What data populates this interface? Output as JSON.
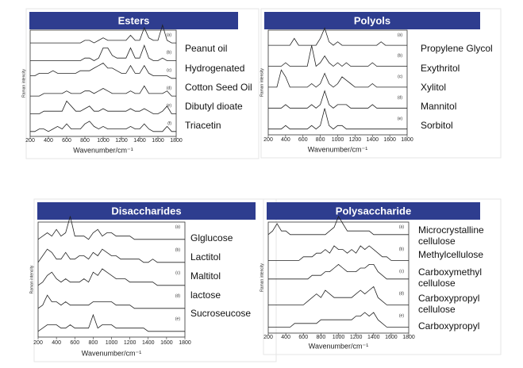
{
  "chart_data": [
    {
      "type": "line",
      "title": "Esters",
      "xlabel": "Wavenumber/cm⁻¹",
      "ylabel": "Raman intencity",
      "xlim": [
        200,
        1800
      ],
      "xticks": [
        200,
        400,
        600,
        800,
        1000,
        1200,
        1400,
        1600,
        1800
      ],
      "x": [
        200,
        250,
        300,
        350,
        400,
        450,
        500,
        550,
        600,
        650,
        700,
        750,
        800,
        850,
        900,
        950,
        1000,
        1050,
        1100,
        1150,
        1200,
        1250,
        1300,
        1350,
        1400,
        1450,
        1500,
        1550,
        1600,
        1650,
        1700,
        1750,
        1800
      ],
      "series": [
        {
          "name": "Peanut oil",
          "tag": "(a)",
          "color": "#222",
          "values": [
            1,
            1,
            1,
            1,
            1,
            1,
            1,
            1,
            1,
            1,
            1,
            1,
            2,
            2,
            1,
            2,
            3,
            2,
            2,
            2,
            2,
            2,
            4,
            2,
            2,
            7,
            3,
            2,
            2,
            8,
            2,
            1,
            1
          ]
        },
        {
          "name": "Hydrogenated",
          "tag": "(b)",
          "color": "#222",
          "values": [
            1,
            1,
            1,
            1,
            1,
            1,
            1,
            1,
            1,
            1,
            1,
            1,
            2,
            2,
            1,
            2,
            6,
            6,
            3,
            2,
            2,
            2,
            6,
            2,
            2,
            7,
            2,
            1,
            1,
            2,
            1,
            1,
            1
          ]
        },
        {
          "name": "Cotton Seed Oil",
          "tag": "(c)",
          "color": "#222",
          "values": [
            2,
            2,
            3,
            3,
            3,
            4,
            3,
            3,
            3,
            3,
            3,
            4,
            4,
            4,
            5,
            6,
            7,
            5,
            5,
            4,
            3,
            3,
            6,
            3,
            3,
            6,
            3,
            2,
            2,
            2,
            2,
            1,
            1
          ]
        },
        {
          "name": "Dibutyl dioate",
          "tag": "(d)",
          "color": "#222",
          "values": [
            1,
            1,
            1,
            2,
            2,
            2,
            2,
            2,
            3,
            2,
            2,
            2,
            3,
            3,
            2,
            3,
            4,
            3,
            2,
            2,
            2,
            2,
            3,
            2,
            2,
            5,
            2,
            2,
            2,
            2,
            3,
            1,
            1
          ]
        },
        {
          "tag": "(e)",
          "color": "#222",
          "values": [
            1,
            1,
            1,
            2,
            2,
            2,
            2,
            2,
            6,
            4,
            2,
            2,
            3,
            4,
            2,
            2,
            3,
            2,
            2,
            2,
            2,
            2,
            3,
            2,
            2,
            3,
            2,
            1,
            1,
            2,
            4,
            1,
            1
          ]
        },
        {
          "name": "Triacetin",
          "tag": "(f)",
          "color": "#222",
          "values": [
            1,
            1,
            2,
            2,
            1,
            2,
            3,
            2,
            4,
            2,
            2,
            2,
            4,
            5,
            3,
            2,
            3,
            2,
            2,
            2,
            2,
            2,
            3,
            2,
            2,
            4,
            2,
            1,
            1,
            1,
            3,
            1,
            1
          ]
        }
      ]
    },
    {
      "type": "line",
      "title": "Polyols",
      "xlabel": "Wavenumber/cm⁻¹",
      "ylabel": "Raman intensity",
      "xlim": [
        200,
        1800
      ],
      "xticks": [
        200,
        400,
        600,
        800,
        1000,
        1200,
        1400,
        1600,
        1800
      ],
      "x": [
        200,
        250,
        300,
        350,
        400,
        450,
        500,
        550,
        600,
        650,
        700,
        750,
        800,
        850,
        900,
        950,
        1000,
        1050,
        1100,
        1150,
        1200,
        1250,
        1300,
        1350,
        1400,
        1450,
        1500,
        1550,
        1600,
        1650,
        1700,
        1750,
        1800
      ],
      "series": [
        {
          "name": "Propylene Glycol",
          "tag": "(a)",
          "color": "#222",
          "values": [
            1,
            1,
            1,
            1,
            1,
            1,
            3,
            1,
            1,
            1,
            1,
            1,
            3,
            6,
            2,
            1,
            2,
            1,
            1,
            1,
            1,
            1,
            1,
            1,
            1,
            1,
            2,
            1,
            1,
            1,
            1,
            1,
            1
          ]
        },
        {
          "name": "Exythritol",
          "tag": "(b)",
          "color": "#222",
          "values": [
            1,
            1,
            1,
            1,
            2,
            1,
            1,
            1,
            1,
            1,
            7,
            1,
            2,
            4,
            2,
            1,
            2,
            1,
            2,
            1,
            1,
            1,
            1,
            1,
            2,
            1,
            1,
            1,
            1,
            1,
            1,
            1,
            1
          ]
        },
        {
          "name": "Xylitol",
          "tag": "(c)",
          "color": "#222",
          "values": [
            1,
            1,
            1,
            6,
            4,
            1,
            1,
            1,
            1,
            1,
            2,
            1,
            2,
            5,
            2,
            1,
            2,
            4,
            3,
            2,
            1,
            1,
            1,
            1,
            2,
            1,
            1,
            1,
            1,
            1,
            1,
            1,
            1
          ]
        },
        {
          "name": "Mannitol",
          "tag": "(d)",
          "color": "#222",
          "values": [
            1,
            1,
            1,
            1,
            2,
            1,
            1,
            1,
            1,
            1,
            2,
            1,
            2,
            6,
            2,
            1,
            2,
            2,
            2,
            1,
            1,
            1,
            1,
            1,
            2,
            1,
            1,
            1,
            1,
            1,
            1,
            1,
            1
          ]
        },
        {
          "name": "Sorbitol",
          "tag": "(e)",
          "color": "#222",
          "values": [
            1,
            1,
            1,
            1,
            2,
            1,
            1,
            1,
            1,
            1,
            2,
            1,
            2,
            7,
            2,
            1,
            2,
            2,
            1,
            1,
            1,
            1,
            1,
            1,
            1,
            1,
            1,
            1,
            1,
            1,
            1,
            1,
            1
          ]
        }
      ]
    },
    {
      "type": "line",
      "title": "Disaccharides",
      "xlabel": "Wavenumber/cm⁻¹",
      "ylabel": "Raman intencity",
      "xlim": [
        200,
        1800
      ],
      "xticks": [
        200,
        400,
        600,
        800,
        1000,
        1200,
        1400,
        1600,
        1800
      ],
      "x": [
        200,
        250,
        300,
        350,
        400,
        450,
        500,
        550,
        600,
        650,
        700,
        750,
        800,
        850,
        900,
        950,
        1000,
        1050,
        1100,
        1150,
        1200,
        1250,
        1300,
        1350,
        1400,
        1450,
        1500,
        1550,
        1600,
        1650,
        1700,
        1750,
        1800
      ],
      "series": [
        {
          "name": "Glglucose",
          "tag": "(a)",
          "color": "#222",
          "values": [
            1,
            2,
            3,
            2,
            4,
            2,
            3,
            8,
            2,
            2,
            2,
            1,
            3,
            4,
            2,
            3,
            3,
            2,
            2,
            2,
            2,
            1,
            1,
            1,
            1,
            1,
            1,
            1,
            1,
            1,
            1,
            1,
            1
          ]
        },
        {
          "name": "Lactitol",
          "tag": "(b)",
          "color": "#222",
          "values": [
            1,
            3,
            5,
            4,
            2,
            2,
            4,
            2,
            2,
            3,
            3,
            2,
            4,
            3,
            5,
            4,
            3,
            3,
            2,
            2,
            2,
            2,
            2,
            1,
            1,
            2,
            1,
            1,
            1,
            1,
            1,
            1,
            1
          ]
        },
        {
          "name": "Maltitol",
          "tag": "(c)",
          "color": "#222",
          "values": [
            1,
            2,
            4,
            5,
            3,
            2,
            3,
            2,
            2,
            2,
            3,
            2,
            5,
            4,
            6,
            5,
            4,
            3,
            3,
            3,
            2,
            2,
            2,
            2,
            2,
            2,
            1,
            1,
            1,
            1,
            1,
            1,
            1
          ]
        },
        {
          "name": "lactose",
          "tag": "(d)",
          "color": "#222",
          "values": [
            1,
            2,
            5,
            3,
            3,
            2,
            3,
            2,
            2,
            2,
            2,
            2,
            3,
            3,
            3,
            3,
            3,
            2,
            2,
            2,
            2,
            1,
            1,
            1,
            1,
            1,
            1,
            1,
            1,
            1,
            1,
            1,
            1
          ]
        },
        {
          "name": "Sucroseucose",
          "tag": "(e)",
          "color": "#222",
          "values": [
            1,
            2,
            3,
            3,
            3,
            2,
            2,
            3,
            2,
            2,
            2,
            2,
            6,
            2,
            3,
            3,
            3,
            2,
            2,
            2,
            2,
            2,
            2,
            2,
            1,
            1,
            1,
            1,
            1,
            1,
            1,
            1,
            1
          ]
        }
      ]
    },
    {
      "type": "line",
      "title": "Polysaccharide",
      "xlabel": "Wavenumber/cm⁻¹",
      "ylabel": "Raman intencity",
      "xlim": [
        200,
        1800
      ],
      "xticks": [
        200,
        400,
        600,
        800,
        1000,
        1200,
        1400,
        1600,
        1800
      ],
      "x": [
        200,
        250,
        300,
        350,
        400,
        450,
        500,
        550,
        600,
        650,
        700,
        750,
        800,
        850,
        900,
        950,
        1000,
        1050,
        1100,
        1150,
        1200,
        1250,
        1300,
        1350,
        1400,
        1450,
        1500,
        1550,
        1600,
        1650,
        1700,
        1750,
        1800
      ],
      "series": [
        {
          "name": "Microcrystalline cellulose",
          "tag": "(a)",
          "color": "#222",
          "values": [
            2,
            3,
            5,
            3,
            3,
            2,
            2,
            2,
            2,
            2,
            2,
            2,
            2,
            2,
            3,
            4,
            7,
            5,
            3,
            3,
            3,
            3,
            3,
            3,
            2,
            2,
            2,
            2,
            2,
            2,
            2,
            2,
            2
          ]
        },
        {
          "name": "Methylcellulose",
          "tag": "(b)",
          "color": "#222",
          "values": [
            1,
            1,
            1,
            1,
            1,
            1,
            1,
            1,
            2,
            2,
            2,
            3,
            3,
            4,
            3,
            5,
            4,
            4,
            3,
            4,
            3,
            5,
            4,
            5,
            4,
            3,
            2,
            2,
            1,
            1,
            1,
            1,
            1
          ]
        },
        {
          "name": "Carboxymethyl cellulose",
          "tag": "(c)",
          "color": "#222",
          "values": [
            2,
            2,
            2,
            2,
            2,
            2,
            2,
            2,
            2,
            2,
            3,
            3,
            3,
            4,
            4,
            5,
            6,
            5,
            4,
            4,
            4,
            5,
            5,
            6,
            6,
            4,
            3,
            2,
            2,
            2,
            2,
            2,
            2
          ]
        },
        {
          "name": "Carboxypropyl cellulose",
          "tag": "(d)",
          "color": "#222",
          "values": [
            1,
            1,
            1,
            1,
            1,
            1,
            1,
            1,
            1,
            2,
            3,
            4,
            3,
            5,
            4,
            3,
            3,
            3,
            3,
            3,
            4,
            5,
            4,
            5,
            6,
            3,
            2,
            1,
            1,
            1,
            1,
            1,
            1
          ]
        },
        {
          "name": "Carboxypropyl",
          "tag": "(e)",
          "color": "#222",
          "values": [
            1,
            1,
            1,
            1,
            1,
            1,
            2,
            2,
            2,
            2,
            2,
            2,
            3,
            3,
            3,
            3,
            3,
            3,
            3,
            3,
            4,
            4,
            5,
            4,
            5,
            3,
            2,
            1,
            1,
            1,
            1,
            1,
            1
          ]
        }
      ]
    }
  ]
}
